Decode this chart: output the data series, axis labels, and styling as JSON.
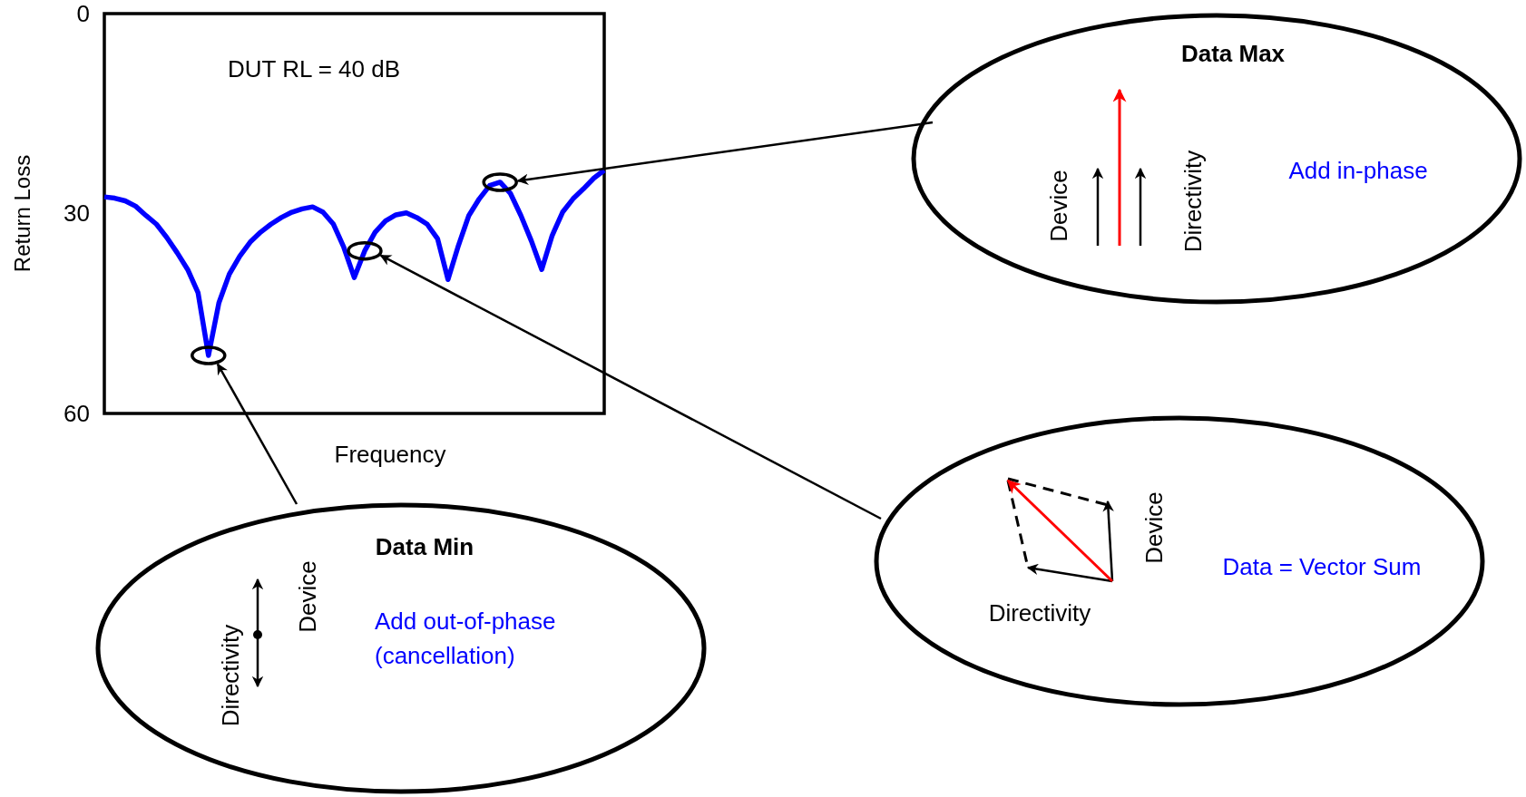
{
  "chart_data": {
    "type": "line",
    "ylabel": "Return Loss",
    "xlabel": "Frequency",
    "categories": [
      null,
      null,
      null,
      null,
      null,
      null,
      null,
      null,
      null,
      null,
      null,
      null,
      null,
      null,
      null,
      null,
      null,
      null,
      null,
      null,
      null,
      null,
      null,
      null,
      null,
      null,
      null,
      null,
      null,
      null,
      null,
      null,
      null,
      null,
      null,
      null,
      null,
      null,
      null,
      null,
      null,
      null,
      null,
      null,
      null,
      null,
      null,
      null,
      null
    ],
    "series": [
      {
        "color": "#0000ff",
        "values": [
          27.5,
          27.7,
          28.1,
          28.9,
          30.3,
          31.6,
          33.6,
          35.9,
          38.4,
          41.9,
          51.3,
          43.4,
          39.1,
          36.4,
          34.3,
          32.8,
          31.6,
          30.6,
          29.8,
          29.3,
          29.0,
          29.8,
          31.6,
          35.1,
          39.6,
          35.6,
          32.8,
          31.1,
          30.2,
          29.9,
          30.6,
          31.6,
          33.8,
          39.9,
          34.8,
          30.3,
          27.8,
          25.8,
          25.3,
          27.0,
          30.3,
          34.1,
          38.4,
          33.3,
          29.8,
          27.8,
          26.3,
          24.7,
          23.5
        ]
      }
    ],
    "ylim": [
      60,
      0
    ],
    "yticks": [
      0,
      30,
      60
    ],
    "tick_labels": "y",
    "marker": "none",
    "line_style": "solid",
    "annotations": [
      "DUT RL = 40 dB",
      "Data Max",
      "Device",
      "Directivity",
      "Add in-phase",
      "Device",
      "Directivity",
      "Data = Vector Sum",
      "Data Min",
      "Directivity",
      "Device",
      "Add out-of-phase",
      "(cancellation)"
    ]
  }
}
